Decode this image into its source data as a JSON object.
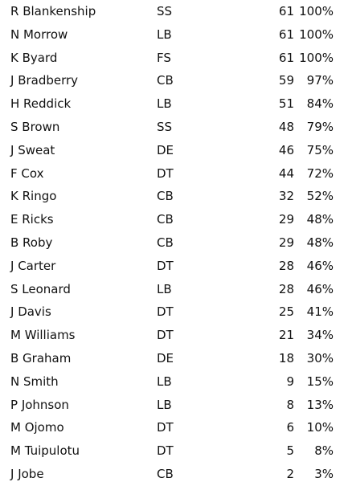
{
  "players": [
    {
      "name": "R Blankenship",
      "pos": "SS",
      "snaps": "61",
      "pct": "100%"
    },
    {
      "name": "N Morrow",
      "pos": "LB",
      "snaps": "61",
      "pct": "100%"
    },
    {
      "name": "K Byard",
      "pos": "FS",
      "snaps": "61",
      "pct": "100%"
    },
    {
      "name": "J Bradberry",
      "pos": "CB",
      "snaps": "59",
      "pct": "97%"
    },
    {
      "name": "H Reddick",
      "pos": "LB",
      "snaps": "51",
      "pct": "84%"
    },
    {
      "name": "S Brown",
      "pos": "SS",
      "snaps": "48",
      "pct": "79%"
    },
    {
      "name": "J Sweat",
      "pos": "DE",
      "snaps": "46",
      "pct": "75%"
    },
    {
      "name": "F Cox",
      "pos": "DT",
      "snaps": "44",
      "pct": "72%"
    },
    {
      "name": "K Ringo",
      "pos": "CB",
      "snaps": "32",
      "pct": "52%"
    },
    {
      "name": "E Ricks",
      "pos": "CB",
      "snaps": "29",
      "pct": "48%"
    },
    {
      "name": "B Roby",
      "pos": "CB",
      "snaps": "29",
      "pct": "48%"
    },
    {
      "name": "J Carter",
      "pos": "DT",
      "snaps": "28",
      "pct": "46%"
    },
    {
      "name": "S Leonard",
      "pos": "LB",
      "snaps": "28",
      "pct": "46%"
    },
    {
      "name": "J Davis",
      "pos": "DT",
      "snaps": "25",
      "pct": "41%"
    },
    {
      "name": "M Williams",
      "pos": "DT",
      "snaps": "21",
      "pct": "34%"
    },
    {
      "name": "B Graham",
      "pos": "DE",
      "snaps": "18",
      "pct": "30%"
    },
    {
      "name": "N Smith",
      "pos": "LB",
      "snaps": "9",
      "pct": "15%"
    },
    {
      "name": "P Johnson",
      "pos": "LB",
      "snaps": "8",
      "pct": "13%"
    },
    {
      "name": "M Ojomo",
      "pos": "DT",
      "snaps": "6",
      "pct": "10%"
    },
    {
      "name": "M Tuipulotu",
      "pos": "DT",
      "snaps": "5",
      "pct": "8%"
    },
    {
      "name": "J Jobe",
      "pos": "CB",
      "snaps": "2",
      "pct": "3%"
    }
  ]
}
